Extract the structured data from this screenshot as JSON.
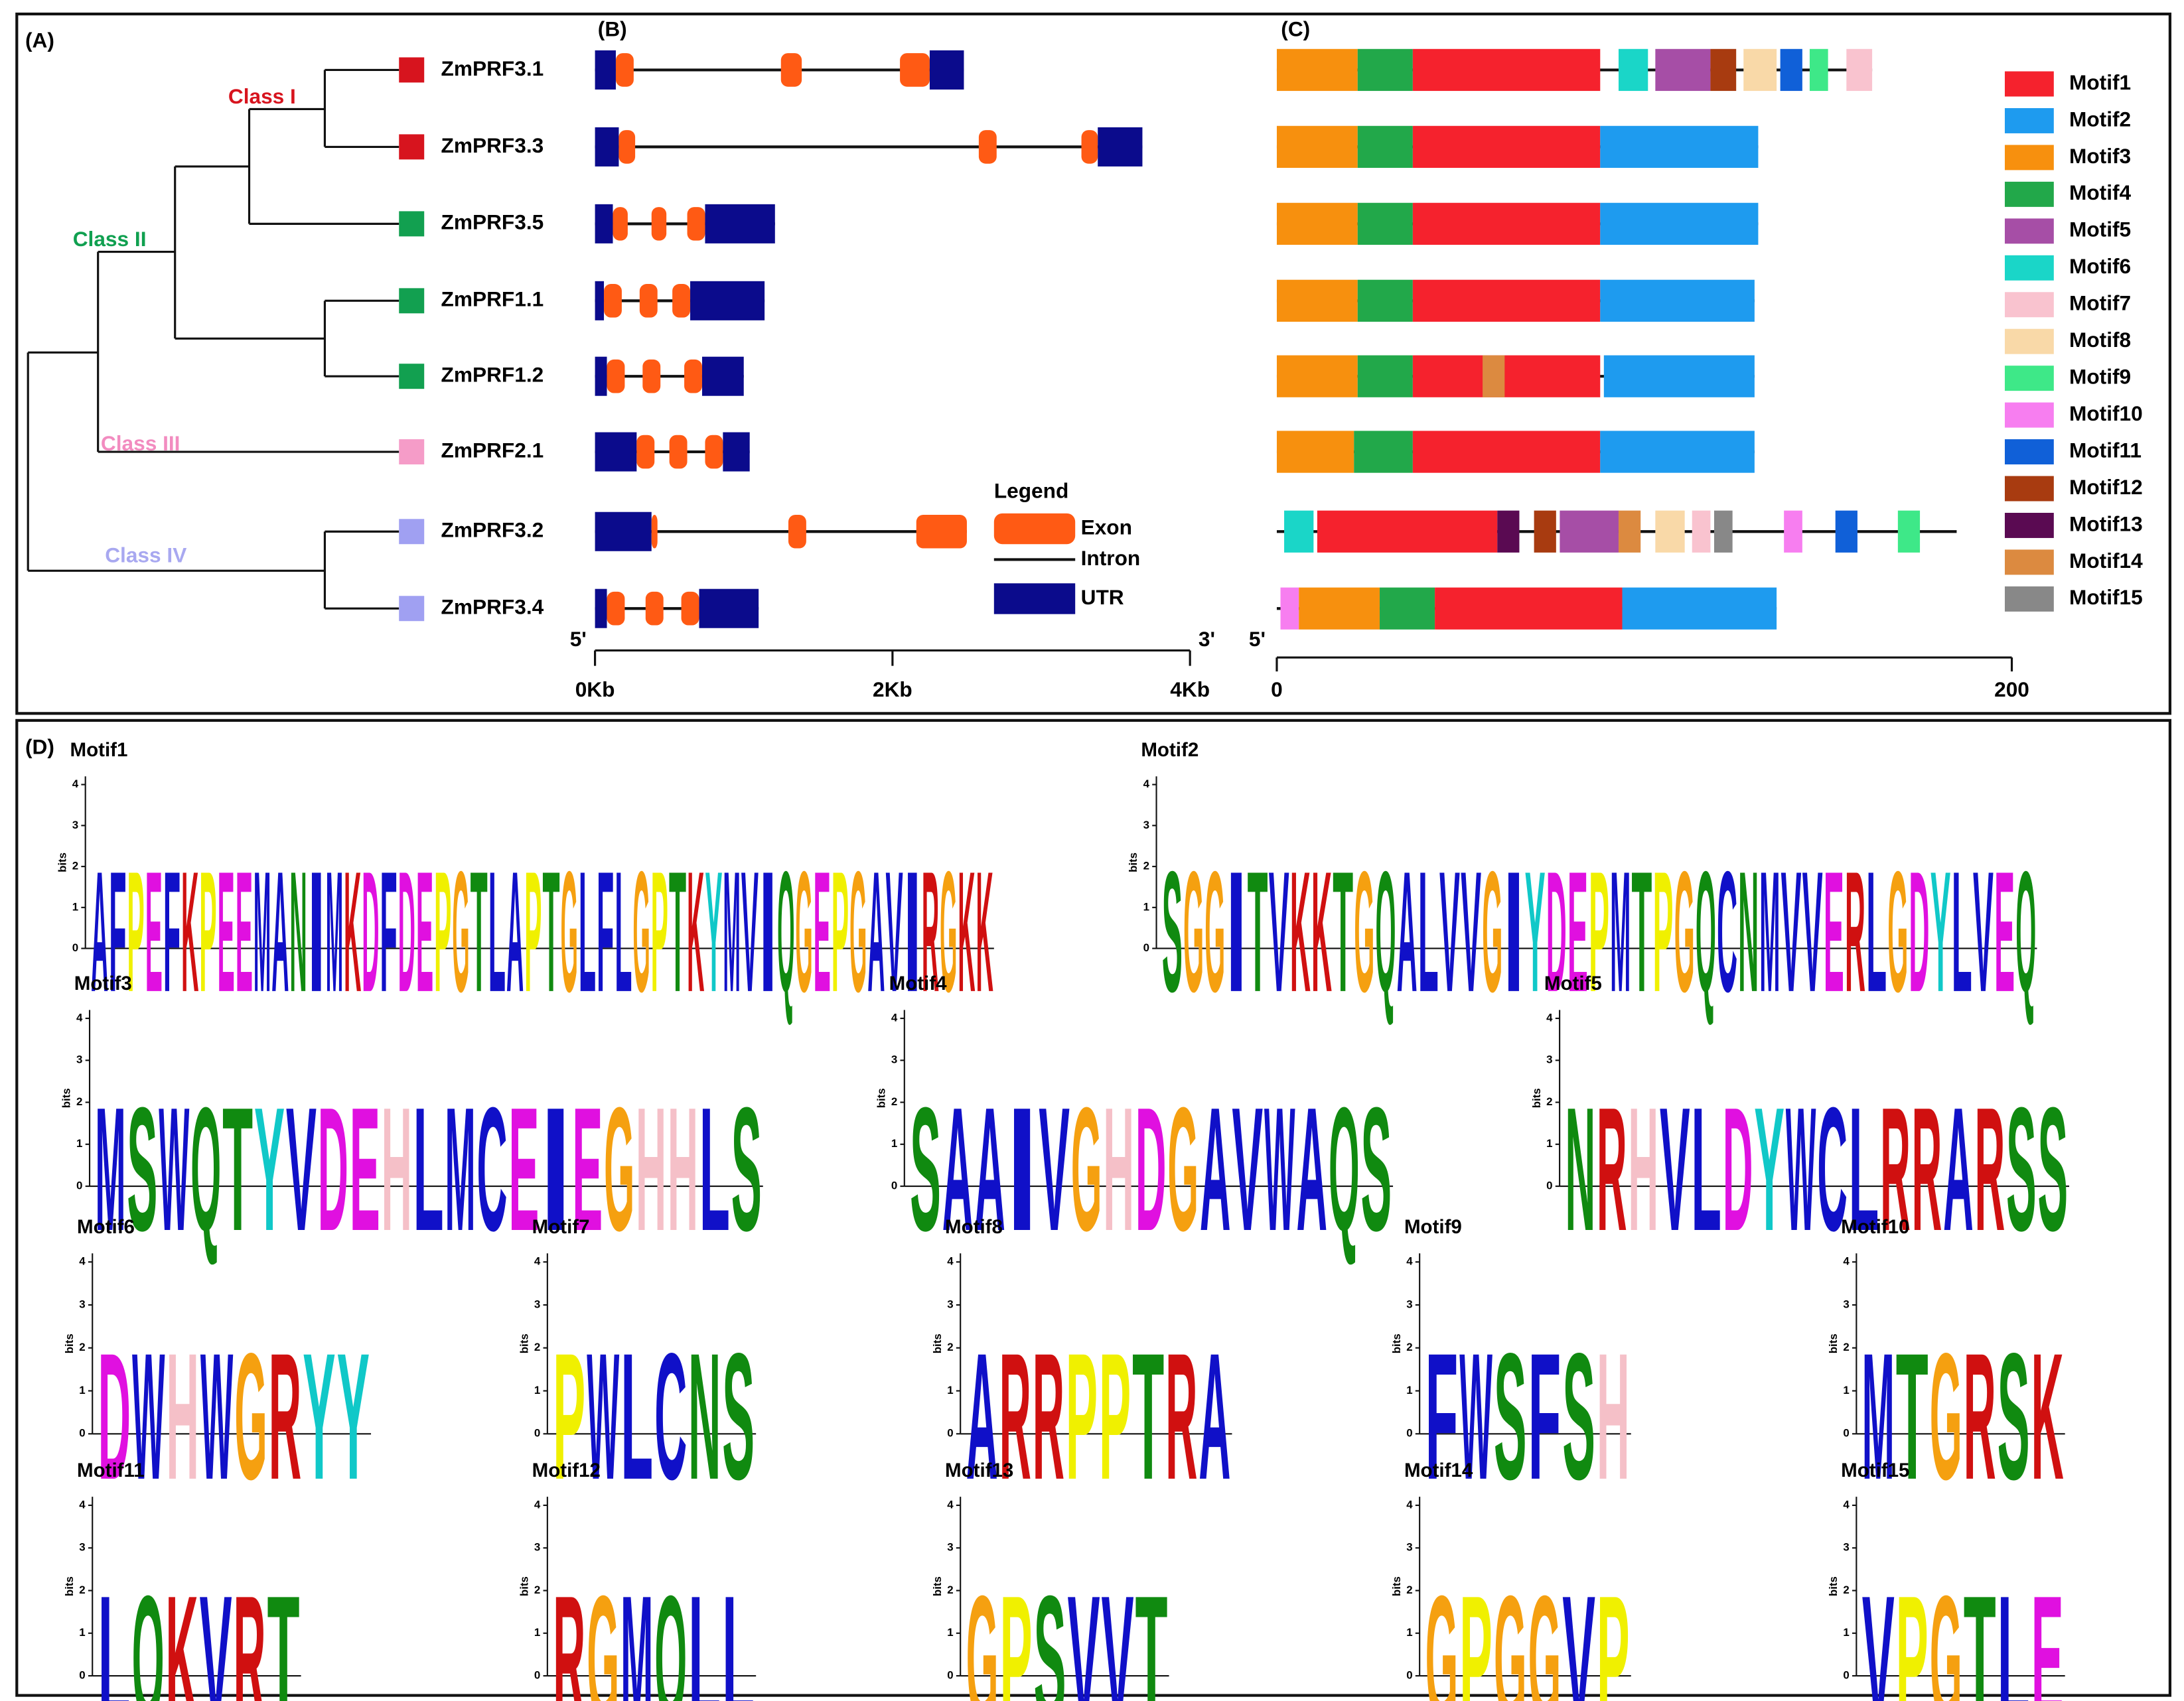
{
  "panels": [
    "(A)",
    "(B)",
    "(C)",
    "(D)"
  ],
  "tree": {
    "classes": [
      {
        "label": "Class I",
        "color": "#d7141e"
      },
      {
        "label": "Class II",
        "color": "#10a050"
      },
      {
        "label": "Class III",
        "color": "#f28cc0"
      },
      {
        "label": "Class IV",
        "color": "#a8a8f0"
      }
    ],
    "genes": [
      {
        "name": "ZmPRF3.1",
        "color": "#d7141e"
      },
      {
        "name": "ZmPRF3.3",
        "color": "#d7141e"
      },
      {
        "name": "ZmPRF3.5",
        "color": "#12a050"
      },
      {
        "name": "ZmPRF1.1",
        "color": "#12a050"
      },
      {
        "name": "ZmPRF1.2",
        "color": "#12a050"
      },
      {
        "name": "ZmPRF2.1",
        "color": "#f59cc8"
      },
      {
        "name": "ZmPRF3.2",
        "color": "#a0a0f2"
      },
      {
        "name": "ZmPRF3.4",
        "color": "#a0a0f2"
      }
    ]
  },
  "gene_structure": {
    "xlim": [
      0,
      4
    ],
    "xticks": [
      {
        "value": 0,
        "label": "0Kb"
      },
      {
        "value": 2,
        "label": "2Kb"
      },
      {
        "value": 4,
        "label": "4Kb"
      }
    ],
    "five_prime": "5'",
    "three_prime": "3'",
    "legend_title": "Legend",
    "legend": [
      {
        "type": "exon",
        "label": "Exon",
        "color": "#ff5a14"
      },
      {
        "type": "intron",
        "label": "Intron",
        "color": "#111111"
      },
      {
        "type": "utr",
        "label": "UTR",
        "color": "#0b0b8c"
      }
    ],
    "genes": [
      {
        "length": 2.48,
        "features": [
          {
            "type": "utr",
            "start": 0,
            "end": 0.14
          },
          {
            "type": "exon",
            "start": 0.14,
            "end": 0.26
          },
          {
            "type": "exon",
            "start": 1.25,
            "end": 1.39
          },
          {
            "type": "exon",
            "start": 2.05,
            "end": 2.25
          },
          {
            "type": "utr",
            "start": 2.25,
            "end": 2.48
          }
        ]
      },
      {
        "length": 3.68,
        "features": [
          {
            "type": "utr",
            "start": 0,
            "end": 0.16
          },
          {
            "type": "exon",
            "start": 0.16,
            "end": 0.27
          },
          {
            "type": "exon",
            "start": 2.58,
            "end": 2.7
          },
          {
            "type": "exon",
            "start": 3.27,
            "end": 3.38
          },
          {
            "type": "utr",
            "start": 3.38,
            "end": 3.68
          }
        ]
      },
      {
        "length": 1.21,
        "features": [
          {
            "type": "utr",
            "start": 0,
            "end": 0.12
          },
          {
            "type": "exon",
            "start": 0.12,
            "end": 0.22
          },
          {
            "type": "exon",
            "start": 0.38,
            "end": 0.48
          },
          {
            "type": "exon",
            "start": 0.62,
            "end": 0.74
          },
          {
            "type": "utr",
            "start": 0.74,
            "end": 1.21
          }
        ]
      },
      {
        "length": 1.14,
        "features": [
          {
            "type": "utr",
            "start": 0,
            "end": 0.06
          },
          {
            "type": "exon",
            "start": 0.06,
            "end": 0.18
          },
          {
            "type": "exon",
            "start": 0.3,
            "end": 0.42
          },
          {
            "type": "exon",
            "start": 0.52,
            "end": 0.64
          },
          {
            "type": "utr",
            "start": 0.64,
            "end": 1.14
          }
        ]
      },
      {
        "length": 1.0,
        "features": [
          {
            "type": "utr",
            "start": 0,
            "end": 0.08
          },
          {
            "type": "exon",
            "start": 0.08,
            "end": 0.2
          },
          {
            "type": "exon",
            "start": 0.32,
            "end": 0.44
          },
          {
            "type": "exon",
            "start": 0.6,
            "end": 0.72
          },
          {
            "type": "utr",
            "start": 0.72,
            "end": 1.0
          }
        ]
      },
      {
        "length": 1.04,
        "features": [
          {
            "type": "utr",
            "start": 0,
            "end": 0.28
          },
          {
            "type": "exon",
            "start": 0.28,
            "end": 0.4
          },
          {
            "type": "exon",
            "start": 0.5,
            "end": 0.62
          },
          {
            "type": "exon",
            "start": 0.74,
            "end": 0.86
          },
          {
            "type": "utr",
            "start": 0.86,
            "end": 1.04
          }
        ]
      },
      {
        "length": 2.5,
        "features": [
          {
            "type": "utr",
            "start": 0,
            "end": 0.38
          },
          {
            "type": "exon",
            "start": 0.38,
            "end": 0.42
          },
          {
            "type": "exon",
            "start": 1.3,
            "end": 1.42
          },
          {
            "type": "exon",
            "start": 2.16,
            "end": 2.5
          }
        ]
      },
      {
        "length": 1.1,
        "features": [
          {
            "type": "utr",
            "start": 0,
            "end": 0.08
          },
          {
            "type": "exon",
            "start": 0.08,
            "end": 0.2
          },
          {
            "type": "exon",
            "start": 0.34,
            "end": 0.46
          },
          {
            "type": "exon",
            "start": 0.58,
            "end": 0.7
          },
          {
            "type": "utr",
            "start": 0.7,
            "end": 1.1
          }
        ]
      }
    ]
  },
  "motif_structure": {
    "xlim": [
      0,
      200
    ],
    "xticks": [
      0,
      200
    ],
    "five_prime": "5'",
    "motifs": [
      {
        "name": "Motif1",
        "color": "#f5222d"
      },
      {
        "name": "Motif2",
        "color": "#1e9bef"
      },
      {
        "name": "Motif3",
        "color": "#f7900e"
      },
      {
        "name": "Motif4",
        "color": "#22a84a"
      },
      {
        "name": "Motif5",
        "color": "#a64ea6"
      },
      {
        "name": "Motif6",
        "color": "#1ad6c8"
      },
      {
        "name": "Motif7",
        "color": "#f9c3cf"
      },
      {
        "name": "Motif8",
        "color": "#f9d9a8"
      },
      {
        "name": "Motif9",
        "color": "#3ee888"
      },
      {
        "name": "Motif10",
        "color": "#f77ef0"
      },
      {
        "name": "Motif11",
        "color": "#1060d8"
      },
      {
        "name": "Motif12",
        "color": "#a83b10"
      },
      {
        "name": "Motif13",
        "color": "#5a0a52"
      },
      {
        "name": "Motif14",
        "color": "#dc8a40"
      },
      {
        "name": "Motif15",
        "color": "#888888"
      }
    ],
    "genes": [
      {
        "length": 162,
        "motifs": [
          {
            "motif": 2,
            "start": 0,
            "end": 22
          },
          {
            "motif": 3,
            "start": 22,
            "end": 37
          },
          {
            "motif": 0,
            "start": 37,
            "end": 88
          },
          {
            "motif": 5,
            "start": 93,
            "end": 101
          },
          {
            "motif": 4,
            "start": 103,
            "end": 118
          },
          {
            "motif": 11,
            "start": 118,
            "end": 125
          },
          {
            "motif": 7,
            "start": 127,
            "end": 136
          },
          {
            "motif": 10,
            "start": 137,
            "end": 143
          },
          {
            "motif": 8,
            "start": 145,
            "end": 150
          },
          {
            "motif": 6,
            "start": 155,
            "end": 162
          }
        ]
      },
      {
        "length": 131,
        "motifs": [
          {
            "motif": 2,
            "start": 0,
            "end": 22
          },
          {
            "motif": 3,
            "start": 22,
            "end": 37
          },
          {
            "motif": 0,
            "start": 37,
            "end": 88
          },
          {
            "motif": 1,
            "start": 88,
            "end": 131
          }
        ]
      },
      {
        "length": 131,
        "motifs": [
          {
            "motif": 2,
            "start": 0,
            "end": 22
          },
          {
            "motif": 3,
            "start": 22,
            "end": 37
          },
          {
            "motif": 0,
            "start": 37,
            "end": 88
          },
          {
            "motif": 1,
            "start": 88,
            "end": 131
          }
        ]
      },
      {
        "length": 130,
        "motifs": [
          {
            "motif": 2,
            "start": 0,
            "end": 22
          },
          {
            "motif": 3,
            "start": 22,
            "end": 37
          },
          {
            "motif": 0,
            "start": 37,
            "end": 88
          },
          {
            "motif": 1,
            "start": 88,
            "end": 130
          }
        ]
      },
      {
        "length": 130,
        "motifs": [
          {
            "motif": 2,
            "start": 0,
            "end": 22
          },
          {
            "motif": 3,
            "start": 22,
            "end": 37
          },
          {
            "motif": 0,
            "start": 37,
            "end": 88
          },
          {
            "motif": 13,
            "start": 56,
            "end": 62
          },
          {
            "motif": 1,
            "start": 89,
            "end": 130
          }
        ]
      },
      {
        "length": 130,
        "motifs": [
          {
            "motif": 2,
            "start": 0,
            "end": 21
          },
          {
            "motif": 3,
            "start": 21,
            "end": 37
          },
          {
            "motif": 0,
            "start": 37,
            "end": 88
          },
          {
            "motif": 1,
            "start": 88,
            "end": 130
          }
        ]
      },
      {
        "length": 185,
        "motifs": [
          {
            "motif": 5,
            "start": 2,
            "end": 10
          },
          {
            "motif": 0,
            "start": 11,
            "end": 60
          },
          {
            "motif": 12,
            "start": 60,
            "end": 66
          },
          {
            "motif": 11,
            "start": 70,
            "end": 76
          },
          {
            "motif": 4,
            "start": 77,
            "end": 93
          },
          {
            "motif": 13,
            "start": 93,
            "end": 99
          },
          {
            "motif": 7,
            "start": 103,
            "end": 111
          },
          {
            "motif": 6,
            "start": 113,
            "end": 118
          },
          {
            "motif": 14,
            "start": 119,
            "end": 124
          },
          {
            "motif": 9,
            "start": 138,
            "end": 143
          },
          {
            "motif": 10,
            "start": 152,
            "end": 158
          },
          {
            "motif": 8,
            "start": 169,
            "end": 175
          }
        ]
      },
      {
        "length": 136,
        "motifs": [
          {
            "motif": 9,
            "start": 1,
            "end": 6
          },
          {
            "motif": 2,
            "start": 6,
            "end": 28
          },
          {
            "motif": 3,
            "start": 28,
            "end": 43
          },
          {
            "motif": 0,
            "start": 43,
            "end": 94
          },
          {
            "motif": 1,
            "start": 94,
            "end": 136
          }
        ]
      }
    ]
  },
  "logos": {
    "ylabel": "bits",
    "ylim": [
      0,
      4.2
    ],
    "yticks": [
      0,
      1,
      2,
      3,
      4
    ],
    "letter_colors": {
      "A": "#1010c8",
      "V": "#1010c8",
      "L": "#1010c8",
      "I": "#1010c8",
      "M": "#1010c8",
      "F": "#1010c8",
      "W": "#1010c8",
      "C": "#1010c8",
      "S": "#108a10",
      "T": "#108a10",
      "Q": "#108a10",
      "N": "#108a10",
      "Y": "#10c8c8",
      "D": "#e010e0",
      "E": "#e010e0",
      "H": "#f5c0c8",
      "K": "#d01010",
      "R": "#d01010",
      "G": "#f5a010",
      "P": "#f0f000"
    },
    "items": [
      {
        "title": "Motif1",
        "consensus": "AFPEFKPEEMANIMKDFDEPGTLAPTGLFLGPTKYMVIQGEPGAVIRGKK"
      },
      {
        "title": "Motif2",
        "consensus": "SGGITVKKTGQALVVGIYDEPMTPGQCNMVVERLGDYLVEQ"
      },
      {
        "title": "Motif3",
        "consensus": "MSWQTYVDEHLMCEIEGHHLS"
      },
      {
        "title": "Motif4",
        "consensus": "SAAIVGHDGAVWAQS"
      },
      {
        "title": "Motif5",
        "consensus": "NRHVLDYWCLRRARSS"
      },
      {
        "title": "Motif6",
        "consensus": "DWHWGRYY"
      },
      {
        "title": "Motif7",
        "consensus": "PWLCNS"
      },
      {
        "title": "Motif8",
        "consensus": "ARRPPTRA"
      },
      {
        "title": "Motif9",
        "consensus": "FWSFSH"
      },
      {
        "title": "Motif10",
        "consensus": "MTGRSK"
      },
      {
        "title": "Motif11",
        "consensus": "LQKVRT"
      },
      {
        "title": "Motif12",
        "consensus": "RGMQLL"
      },
      {
        "title": "Motif13",
        "consensus": "GPSVVT"
      },
      {
        "title": "Motif14",
        "consensus": "GPGGVP"
      },
      {
        "title": "Motif15",
        "consensus": "VPGTLE"
      }
    ]
  }
}
